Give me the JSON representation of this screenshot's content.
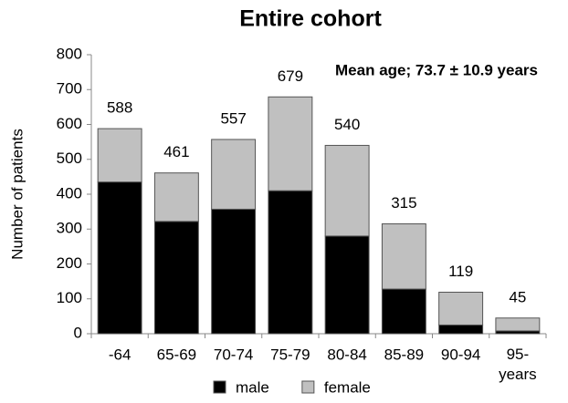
{
  "chart_data": {
    "type": "stacked_bar",
    "title": "Entire cohort",
    "y_label": "Number of patients",
    "annotation": "Mean age; 73.7 ± 10.9 years",
    "categories": [
      "-64",
      "65-69",
      "70-74",
      "75-79",
      "80-84",
      "85-89",
      "90-94",
      "95-\nyears"
    ],
    "series": [
      {
        "name": "male",
        "color": "#000000",
        "values": [
          435,
          322,
          357,
          410,
          280,
          128,
          25,
          8
        ]
      },
      {
        "name": "female",
        "color": "#c0c0c0",
        "values": [
          153,
          139,
          200,
          269,
          260,
          187,
          94,
          37
        ]
      }
    ],
    "totals": [
      588,
      461,
      557,
      679,
      540,
      315,
      119,
      45
    ],
    "ylim": [
      0,
      800
    ],
    "yticks": [
      0,
      100,
      200,
      300,
      400,
      500,
      600,
      700,
      800
    ],
    "grid": false,
    "legend": "bottom"
  }
}
